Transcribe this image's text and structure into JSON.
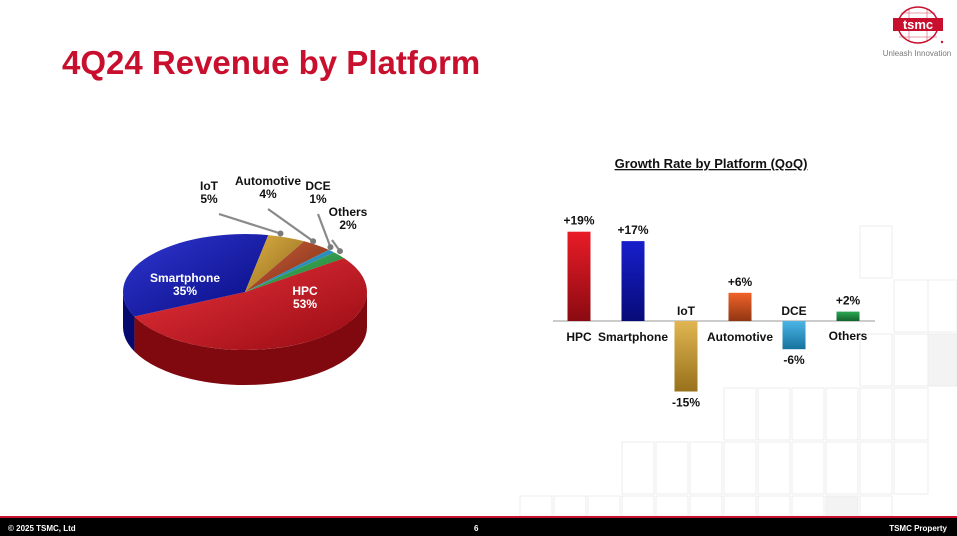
{
  "slide": {
    "title": "4Q24 Revenue by Platform",
    "brand": "tsmc",
    "tagline": "Unleash Innovation",
    "footer_left": "© 2025 TSMC, Ltd",
    "page_number": "6",
    "footer_right": "TSMC Property",
    "accent_color": "#c8102e"
  },
  "chart_data": [
    {
      "type": "pie",
      "categories": [
        "HPC",
        "Smartphone",
        "IoT",
        "Automotive",
        "DCE",
        "Others"
      ],
      "values": [
        53,
        35,
        5,
        4,
        1,
        2
      ],
      "labels": [
        "53%",
        "35%",
        "5%",
        "4%",
        "1%",
        "2%"
      ],
      "colors": [
        "#e8101c",
        "#0b13c8",
        "#d9a227",
        "#c0441b",
        "#1fa3e0",
        "#2bb34a"
      ]
    },
    {
      "type": "bar",
      "title": "Growth Rate by Platform (QoQ)",
      "categories": [
        "HPC",
        "Smartphone",
        "IoT",
        "Automotive",
        "DCE",
        "Others"
      ],
      "values": [
        19,
        17,
        -15,
        6,
        -6,
        2
      ],
      "labels": [
        "+19%",
        "+17%",
        "-15%",
        "+6%",
        "-6%",
        "+2%"
      ],
      "colors": [
        "#e8101c",
        "#0b13c8",
        "#d9a227",
        "#f05a1e",
        "#1fa3e0",
        "#1fa34a"
      ]
    }
  ]
}
